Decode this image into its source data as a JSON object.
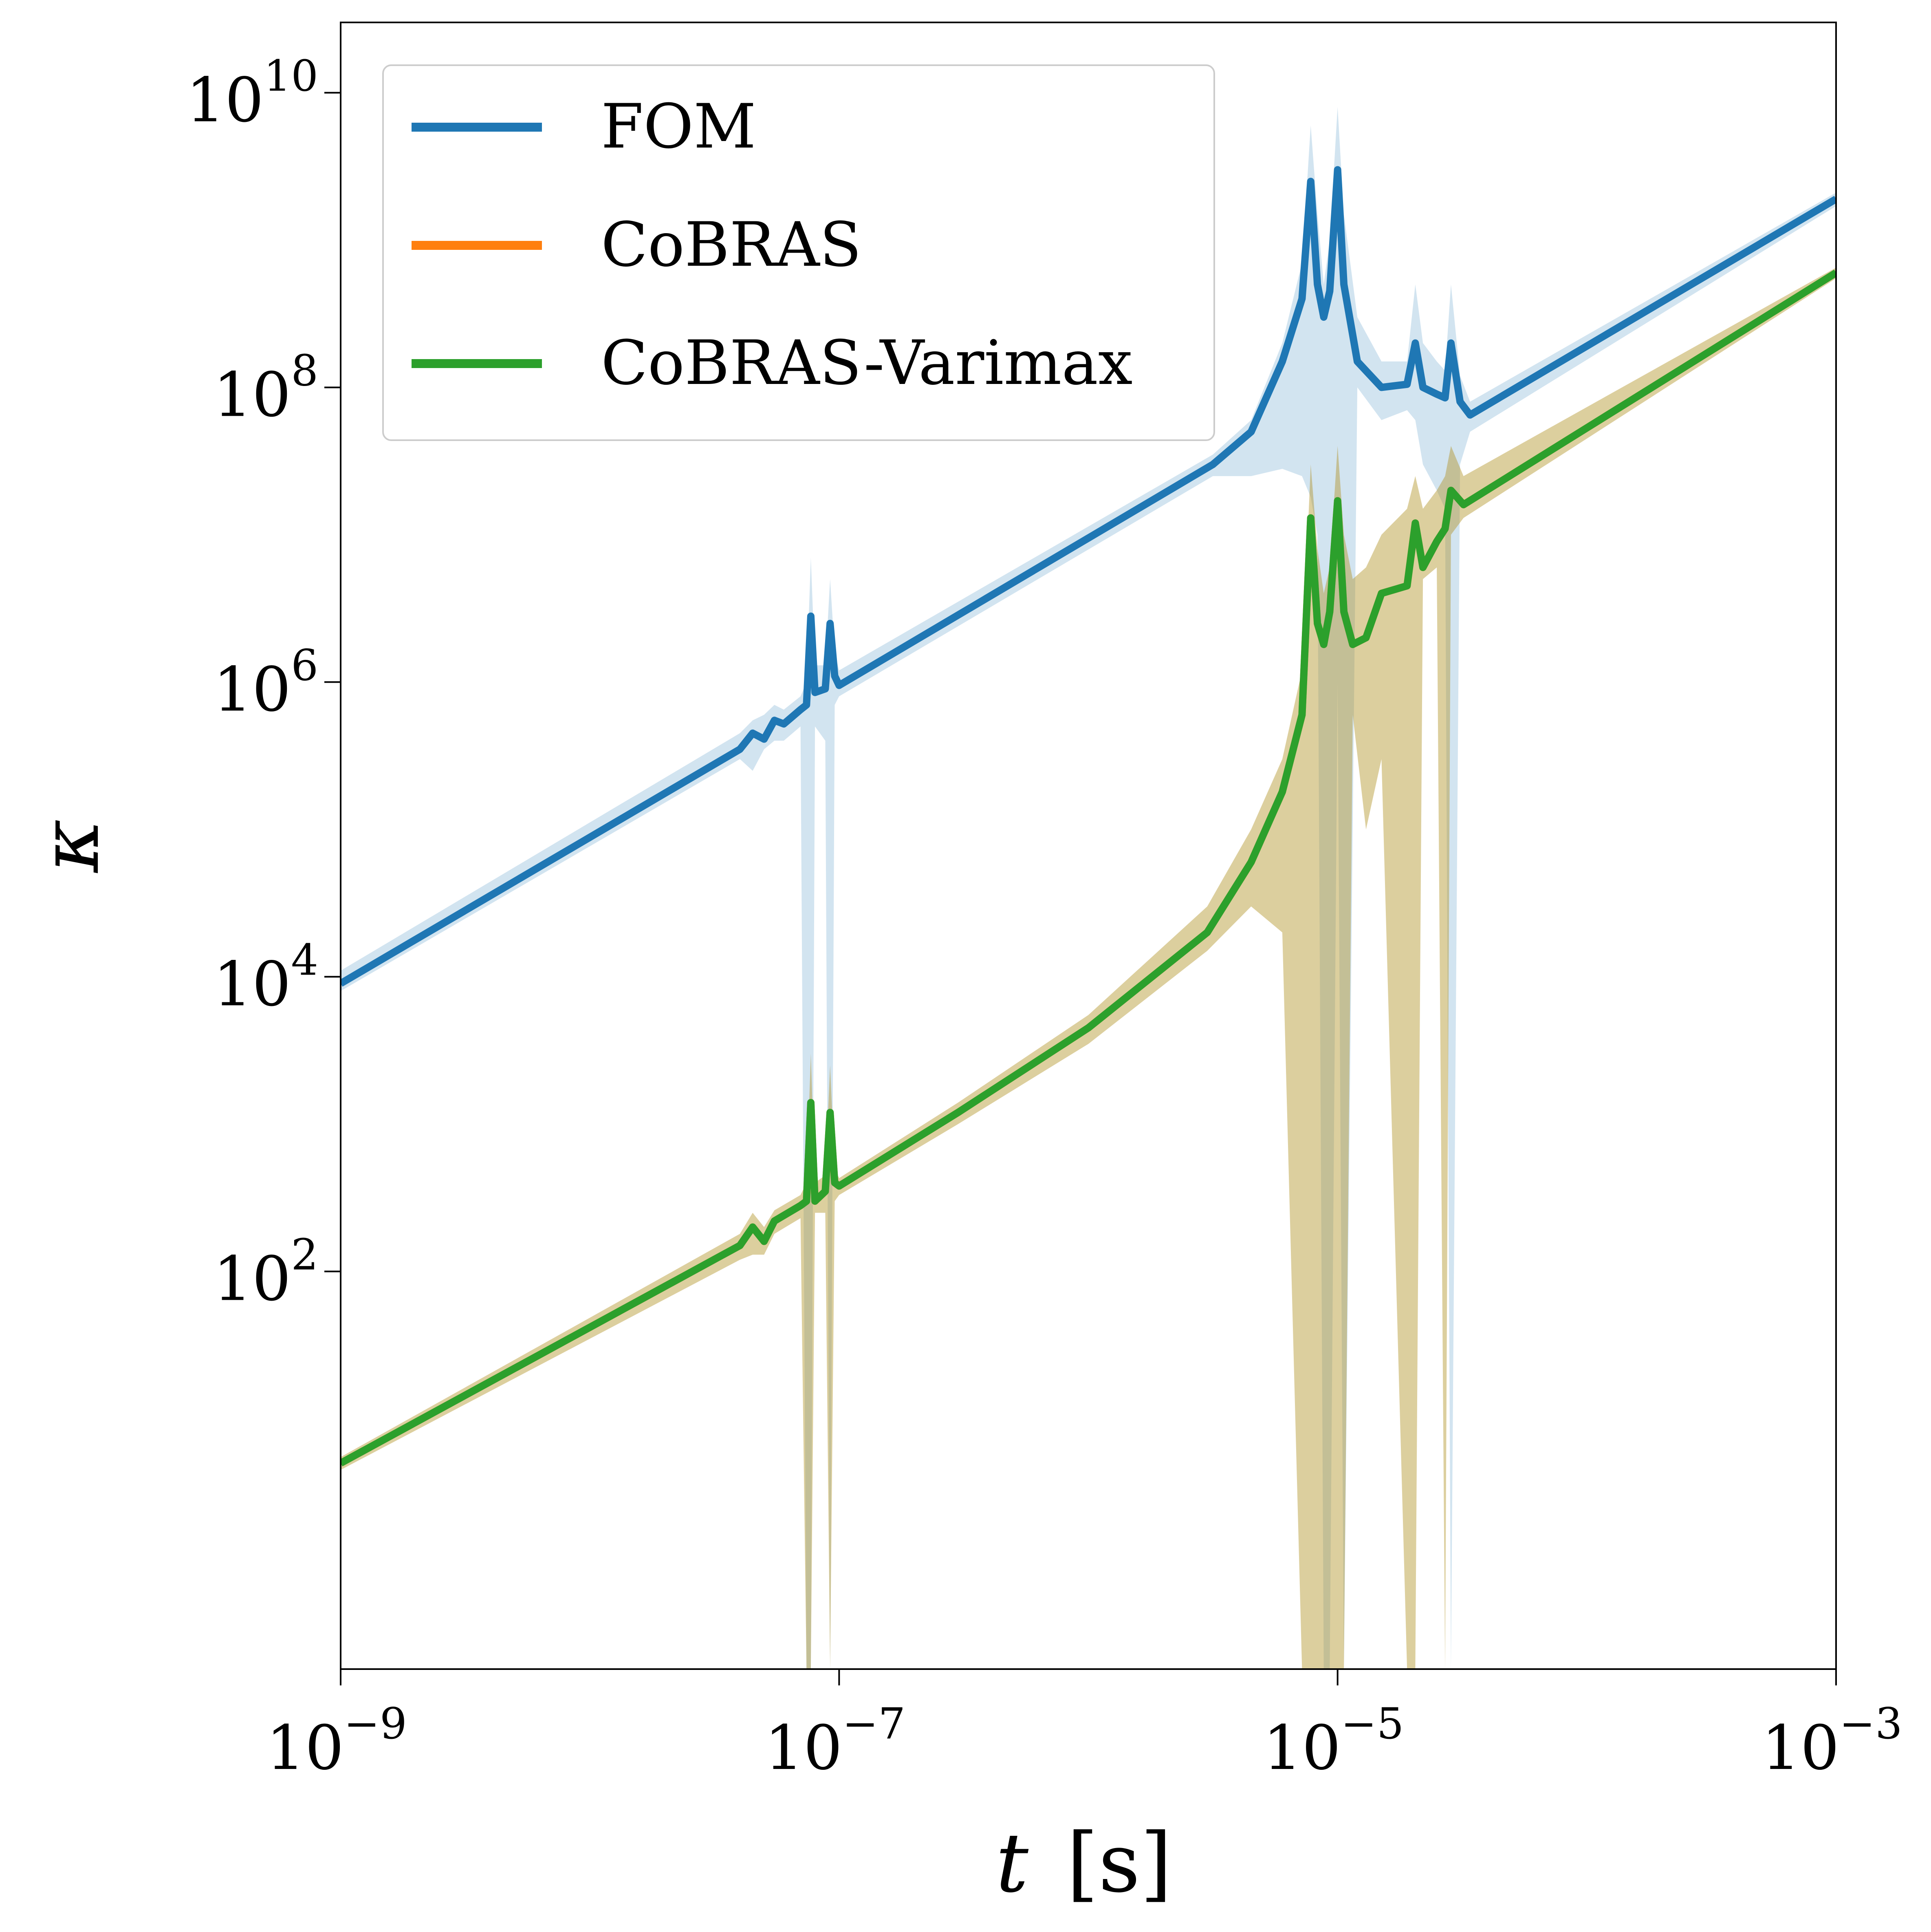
{
  "chart_data": {
    "type": "line",
    "xscale": "log",
    "yscale": "log",
    "xlim": [
      1e-09,
      0.001
    ],
    "ylim": [
      0.2,
      30000000000.0
    ],
    "xlabel": {
      "symbol": "t",
      "unit": "[s]"
    },
    "ylabel": "κ",
    "xticks": [
      {
        "base": "10",
        "exp": "−9",
        "value": 1e-09
      },
      {
        "base": "10",
        "exp": "−7",
        "value": 1e-07
      },
      {
        "base": "10",
        "exp": "−5",
        "value": 1e-05
      },
      {
        "base": "10",
        "exp": "−3",
        "value": 0.001
      }
    ],
    "yticks": [
      {
        "base": "10",
        "exp": "2",
        "value": 100.0
      },
      {
        "base": "10",
        "exp": "4",
        "value": 10000.0
      },
      {
        "base": "10",
        "exp": "6",
        "value": 1000000.0
      },
      {
        "base": "10",
        "exp": "8",
        "value": 100000000.0
      },
      {
        "base": "10",
        "exp": "10",
        "value": 10000000000.0
      }
    ],
    "grid": false,
    "legend_position": "top-left",
    "series": [
      {
        "name": "FOM",
        "color": "#1f77b4",
        "band_color": "#1f77b4",
        "x": [
          1e-09,
          4e-08,
          4.5e-08,
          5e-08,
          5.5e-08,
          6e-08,
          7e-08,
          7.4e-08,
          7.7e-08,
          8e-08,
          8.8e-08,
          9.2e-08,
          9.6e-08,
          1e-07,
          3.16e-06,
          4.5e-06,
          6e-06,
          7.2e-06,
          7.8e-06,
          8.3e-06,
          8.8e-06,
          9.3e-06,
          1e-05,
          1.06e-05,
          1.2e-05,
          1.5e-05,
          1.9e-05,
          2.05e-05,
          2.2e-05,
          2.5e-05,
          2.7e-05,
          2.85e-05,
          3.1e-05,
          3.4e-05,
          0.001
        ],
        "y": [
          9000.0,
          350000.0,
          450000.0,
          410000.0,
          550000.0,
          520000.0,
          650000.0,
          700000.0,
          2800000.0,
          850000.0,
          900000.0,
          2500000.0,
          1100000.0,
          950000.0,
          30000000.0,
          50000000.0,
          150000000.0,
          400000000.0,
          2500000000.0,
          500000000.0,
          300000000.0,
          450000000.0,
          3000000000.0,
          500000000.0,
          150000000.0,
          100000000.0,
          105000000.0,
          200000000.0,
          100000000.0,
          90000000.0,
          85000000.0,
          200000000.0,
          80000000.0,
          65000000.0,
          1900000000.0
        ],
        "band_upper": [
          11000.0,
          450000.0,
          550000.0,
          600000.0,
          700000.0,
          650000.0,
          800000.0,
          1000000.0,
          7000000.0,
          1300000.0,
          1300000.0,
          5000000.0,
          1600000.0,
          1200000.0,
          35000000.0,
          60000000.0,
          200000000.0,
          700000000.0,
          6000000000.0,
          1500000000.0,
          500000000.0,
          1000000000.0,
          8000000000.0,
          1500000000.0,
          300000000.0,
          150000000.0,
          150000000.0,
          500000000.0,
          200000000.0,
          150000000.0,
          130000000.0,
          500000000.0,
          120000000.0,
          80000000.0,
          2100000000.0
        ],
        "band_lower": [
          8000.0,
          300000.0,
          250000.0,
          350000.0,
          400000.0,
          400000.0,
          500000.0,
          0.2,
          0.2,
          500000.0,
          400000.0,
          0.2,
          700000.0,
          800000.0,
          25000000.0,
          25000000.0,
          28000000.0,
          25000000.0,
          18000000.0,
          10000000.0,
          0.2,
          0.2,
          1000000.0,
          0.2,
          100000000.0,
          60000000.0,
          70000000.0,
          60000000.0,
          30000000.0,
          20000000.0,
          15000000.0,
          0.2,
          30000000.0,
          50000000.0,
          1700000000.0
        ]
      },
      {
        "name": "CoBRAS",
        "color": "#ff7f0e",
        "band_color": "#ff7f0e",
        "x": [
          1e-09,
          4e-08,
          4.5e-08,
          5e-08,
          5.5e-08,
          7e-08,
          7.4e-08,
          7.7e-08,
          8e-08,
          8.8e-08,
          9.2e-08,
          9.6e-08,
          1e-07,
          3e-07,
          1e-06,
          3e-06,
          4.5e-06,
          6e-06,
          7.2e-06,
          7.8e-06,
          8.3e-06,
          8.8e-06,
          9.3e-06,
          1e-05,
          1.06e-05,
          1.15e-05,
          1.3e-05,
          1.5e-05,
          1.9e-05,
          2.05e-05,
          2.2e-05,
          2.5e-05,
          2.7e-05,
          2.85e-05,
          3.2e-05,
          0.001
        ],
        "y": [
          5,
          150.0,
          200.0,
          160.0,
          220.0,
          280.0,
          300.0,
          1400.0,
          300.0,
          350.0,
          1200.0,
          400.0,
          380.0,
          1200.0,
          4500.0,
          20000.0,
          60000.0,
          180000.0,
          600000.0,
          13000000.0,
          2500000.0,
          1800000.0,
          3000000.0,
          17000000.0,
          3000000.0,
          1800000.0,
          2000000.0,
          4000000.0,
          4500000.0,
          12000000.0,
          6000000.0,
          9000000.0,
          11000000.0,
          20000000.0,
          16000000.0,
          600000000.0
        ],
        "band_upper": [
          5.5,
          180.0,
          250.0,
          200.0,
          260.0,
          330.0,
          400.0,
          3000.0,
          400.0,
          450.0,
          2500.0,
          500.0,
          430.0,
          1400.0,
          5500.0,
          30000.0,
          100000.0,
          300000.0,
          1200000.0,
          30000000.0,
          8000000.0,
          4000000.0,
          6000000.0,
          40000000.0,
          10000000.0,
          5000000.0,
          6000000.0,
          10000000.0,
          15000000.0,
          25000000.0,
          15000000.0,
          20000000.0,
          25000000.0,
          40000000.0,
          25000000.0,
          650000000.0
        ],
        "band_lower": [
          4.5,
          120.0,
          130.0,
          130.0,
          180.0,
          230.0,
          0.2,
          0.2,
          250.0,
          250.0,
          0.2,
          300.0,
          330.0,
          1000.0,
          3500.0,
          15000.0,
          30000.0,
          20000.0,
          0.2,
          0.2,
          0.2,
          0.2,
          0.2,
          0.2,
          0.2,
          600000.0,
          100000.0,
          300000.0,
          0.2,
          0.2,
          5000000.0,
          6000000.0,
          0.2,
          10000000.0,
          13000000.0,
          550000000.0
        ]
      },
      {
        "name": "CoBRAS-Varimax",
        "color": "#2ca02c",
        "band_color": "#8a9a2f",
        "x": [
          1e-09,
          4e-08,
          4.5e-08,
          5e-08,
          5.5e-08,
          7e-08,
          7.4e-08,
          7.7e-08,
          8e-08,
          8.8e-08,
          9.2e-08,
          9.6e-08,
          1e-07,
          3e-07,
          1e-06,
          3e-06,
          4.5e-06,
          6e-06,
          7.2e-06,
          7.8e-06,
          8.3e-06,
          8.8e-06,
          9.3e-06,
          1e-05,
          1.06e-05,
          1.15e-05,
          1.3e-05,
          1.5e-05,
          1.9e-05,
          2.05e-05,
          2.2e-05,
          2.5e-05,
          2.7e-05,
          2.85e-05,
          3.2e-05,
          0.001
        ],
        "y": [
          5,
          150.0,
          200.0,
          160.0,
          220.0,
          280.0,
          300.0,
          1400.0,
          300.0,
          350.0,
          1200.0,
          400.0,
          380.0,
          1200.0,
          4500.0,
          20000.0,
          60000.0,
          180000.0,
          600000.0,
          13000000.0,
          2500000.0,
          1800000.0,
          3000000.0,
          17000000.0,
          3000000.0,
          1800000.0,
          2000000.0,
          4000000.0,
          4500000.0,
          12000000.0,
          6000000.0,
          9000000.0,
          11000000.0,
          20000000.0,
          16000000.0,
          600000000.0
        ],
        "band_upper": [
          5.5,
          180.0,
          250.0,
          200.0,
          260.0,
          330.0,
          400.0,
          3000.0,
          400.0,
          450.0,
          2500.0,
          500.0,
          430.0,
          1400.0,
          5500.0,
          30000.0,
          100000.0,
          300000.0,
          1200000.0,
          30000000.0,
          8000000.0,
          4000000.0,
          6000000.0,
          40000000.0,
          10000000.0,
          5000000.0,
          6000000.0,
          10000000.0,
          15000000.0,
          25000000.0,
          15000000.0,
          20000000.0,
          25000000.0,
          40000000.0,
          25000000.0,
          650000000.0
        ],
        "band_lower": [
          4.5,
          120.0,
          130.0,
          130.0,
          180.0,
          230.0,
          0.2,
          0.2,
          250.0,
          250.0,
          0.2,
          300.0,
          330.0,
          1000.0,
          3500.0,
          15000.0,
          30000.0,
          20000.0,
          0.2,
          0.2,
          0.2,
          0.2,
          0.2,
          0.2,
          0.2,
          600000.0,
          100000.0,
          300000.0,
          0.2,
          0.2,
          5000000.0,
          6000000.0,
          0.2,
          10000000.0,
          13000000.0,
          550000000.0
        ]
      }
    ]
  }
}
